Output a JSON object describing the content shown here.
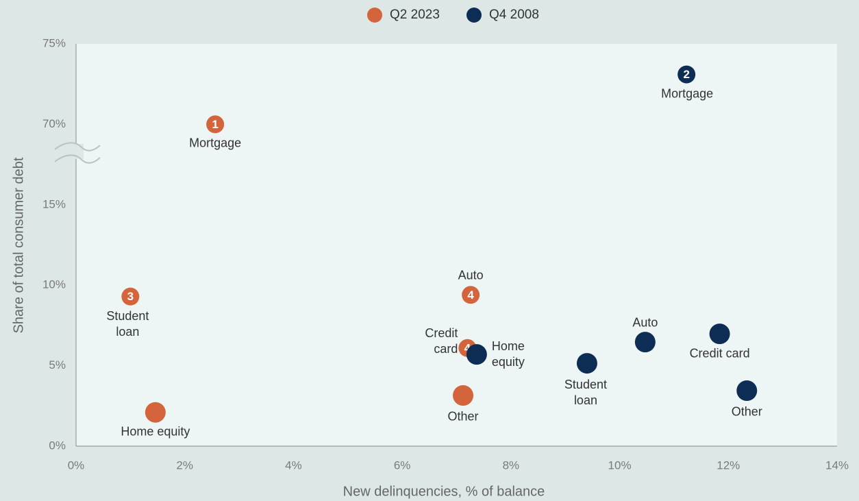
{
  "chart_data": {
    "type": "scatter",
    "xlabel": "New delinquencies, % of balance",
    "ylabel": "Share of total consumer debt",
    "xlim": [
      0,
      14
    ],
    "xticks": [
      {
        "value": 0,
        "label": "0%"
      },
      {
        "value": 2,
        "label": "2%"
      },
      {
        "value": 4,
        "label": "4%"
      },
      {
        "value": 6,
        "label": "6%"
      },
      {
        "value": 8,
        "label": "8%"
      },
      {
        "value": 10,
        "label": "10%"
      },
      {
        "value": 12,
        "label": "12%"
      },
      {
        "value": 14,
        "label": "14%"
      }
    ],
    "ylim": [
      0,
      75
    ],
    "yticks": [
      {
        "value": 0,
        "label": "0%"
      },
      {
        "value": 5,
        "label": "5%"
      },
      {
        "value": 10,
        "label": "10%"
      },
      {
        "value": 15,
        "label": "15%"
      },
      {
        "value": 70,
        "label": "70%"
      },
      {
        "value": 75,
        "label": "75%"
      }
    ],
    "series": [
      {
        "name": "Q2 2023",
        "color": "#d4643c",
        "x": [
          2.56,
          1.0,
          1.46,
          7.26,
          7.2,
          7.12
        ],
        "values": [
          70.0,
          9.3,
          2.1,
          9.4,
          6.1,
          3.15
        ],
        "labels": [
          "Mortgage",
          "Student loan",
          "Home equity",
          "Auto",
          "Credit card",
          "Other"
        ],
        "badges": [
          1,
          3,
          null,
          4,
          4,
          null
        ]
      },
      {
        "name": "Q4 2008",
        "color": "#0d2d54",
        "x": [
          11.23,
          7.37,
          9.4,
          10.47,
          11.84,
          12.34
        ],
        "values": [
          73.1,
          5.7,
          5.15,
          6.47,
          6.98,
          3.45
        ],
        "labels": [
          "Mortgage",
          "Home equity",
          "Student loan",
          "Auto",
          "Credit card",
          "Other"
        ],
        "badges": [
          2,
          null,
          null,
          null,
          null,
          null
        ]
      }
    ]
  }
}
